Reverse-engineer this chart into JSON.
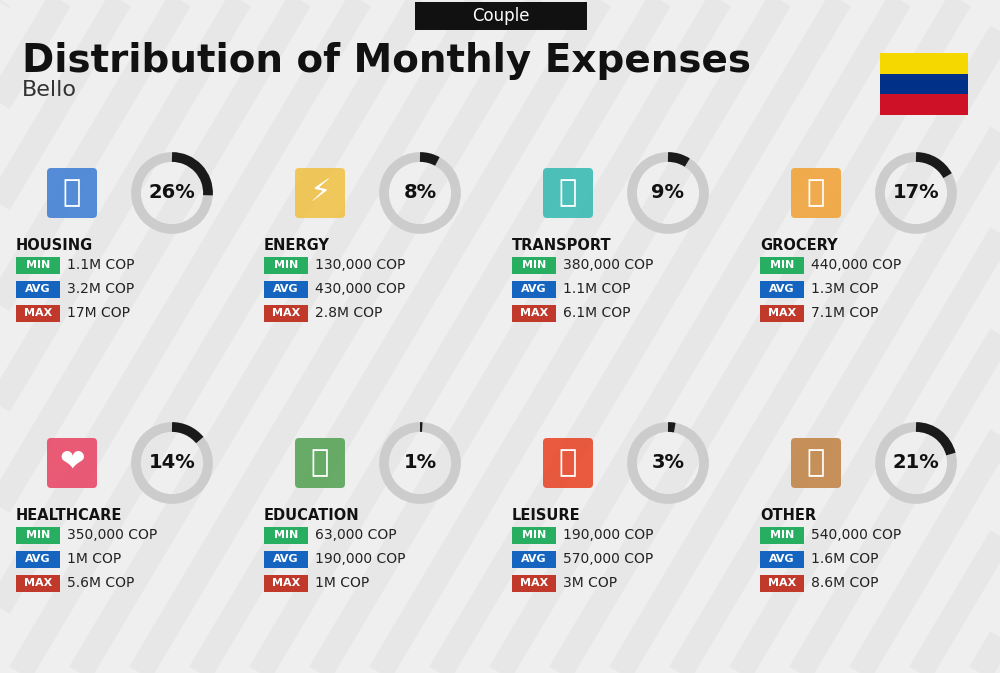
{
  "title": "Distribution of Monthly Expenses",
  "subtitle": "Bello",
  "tag": "Couple",
  "bg_color": "#efefef",
  "stripe_color": "#e0e0e0",
  "categories": [
    {
      "name": "HOUSING",
      "pct": 26,
      "min": "1.1M COP",
      "avg": "3.2M COP",
      "max": "17M COP",
      "row": 0,
      "col": 0
    },
    {
      "name": "ENERGY",
      "pct": 8,
      "min": "130,000 COP",
      "avg": "430,000 COP",
      "max": "2.8M COP",
      "row": 0,
      "col": 1
    },
    {
      "name": "TRANSPORT",
      "pct": 9,
      "min": "380,000 COP",
      "avg": "1.1M COP",
      "max": "6.1M COP",
      "row": 0,
      "col": 2
    },
    {
      "name": "GROCERY",
      "pct": 17,
      "min": "440,000 COP",
      "avg": "1.3M COP",
      "max": "7.1M COP",
      "row": 0,
      "col": 3
    },
    {
      "name": "HEALTHCARE",
      "pct": 14,
      "min": "350,000 COP",
      "avg": "1M COP",
      "max": "5.6M COP",
      "row": 1,
      "col": 0
    },
    {
      "name": "EDUCATION",
      "pct": 1,
      "min": "63,000 COP",
      "avg": "190,000 COP",
      "max": "1M COP",
      "row": 1,
      "col": 1
    },
    {
      "name": "LEISURE",
      "pct": 3,
      "min": "190,000 COP",
      "avg": "570,000 COP",
      "max": "3M COP",
      "row": 1,
      "col": 2
    },
    {
      "name": "OTHER",
      "pct": 21,
      "min": "540,000 COP",
      "avg": "1.6M COP",
      "max": "8.6M COP",
      "row": 1,
      "col": 3
    }
  ],
  "color_min": "#27ae60",
  "color_avg": "#1565c0",
  "color_max": "#c0392b",
  "flag_colors": [
    "#F5D800",
    "#003087",
    "#CE1126"
  ],
  "donut_track_color": "#cccccc",
  "donut_fill_color": "#1a1a1a",
  "tag_bg": "#111111",
  "title_color": "#111111",
  "subtitle_color": "#333333",
  "name_color": "#111111",
  "value_color": "#222222"
}
